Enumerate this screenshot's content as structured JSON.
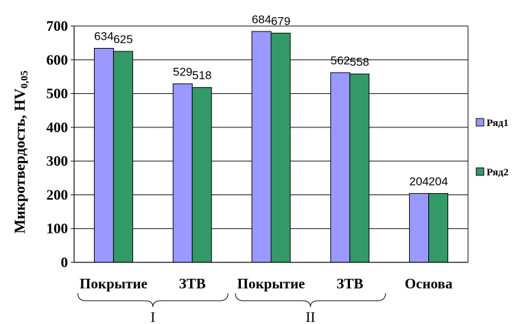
{
  "chart_data": {
    "type": "bar",
    "title": "",
    "ylabel": "Микротвердость, HV",
    "ylabel_sub": "0,05",
    "xlabel": "",
    "ylim": [
      0,
      700
    ],
    "yticks": [
      "0",
      "100",
      "200",
      "300",
      "400",
      "500",
      "600",
      "700"
    ],
    "ytick_values": [
      0,
      100,
      200,
      300,
      400,
      500,
      600,
      700
    ],
    "categories": [
      "Покрытие",
      "ЗТВ",
      "Покрытие",
      "ЗТВ",
      "Основа"
    ],
    "groups": [
      {
        "label": "I",
        "from": 0,
        "to": 1
      },
      {
        "label": "II",
        "from": 2,
        "to": 3
      }
    ],
    "series": [
      {
        "name": "Ряд1",
        "color": "#9999ff",
        "values": [
          634,
          529,
          684,
          562,
          204
        ],
        "labels": [
          "634",
          "529",
          "684",
          "562",
          "204"
        ]
      },
      {
        "name": "Ряд2",
        "color": "#339966",
        "values": [
          625,
          518,
          679,
          558,
          204
        ],
        "labels": [
          "625",
          "518",
          "679",
          "558",
          "204"
        ]
      }
    ],
    "grid": true,
    "legend_position": "right"
  }
}
